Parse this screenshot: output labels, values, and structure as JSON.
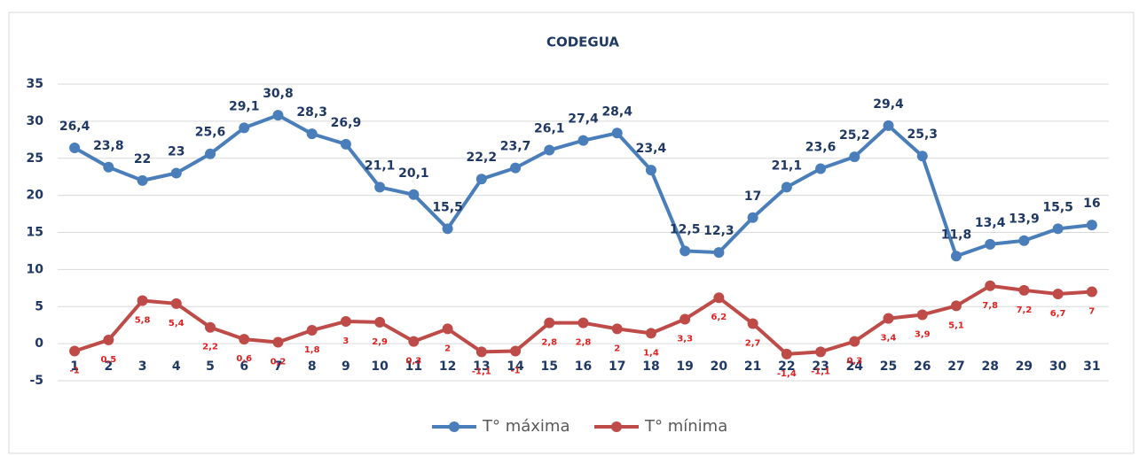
{
  "chart_data": {
    "type": "line",
    "title": "CODEGUA",
    "categories": [
      "1",
      "2",
      "3",
      "4",
      "5",
      "6",
      "7",
      "8",
      "9",
      "10",
      "11",
      "12",
      "13",
      "14",
      "15",
      "16",
      "17",
      "18",
      "19",
      "20",
      "21",
      "22",
      "23",
      "24",
      "25",
      "26",
      "27",
      "28",
      "29",
      "30",
      "31"
    ],
    "series": [
      {
        "name": "T° máxima",
        "color": "#4a7ebb",
        "values": [
          26.4,
          23.8,
          22,
          23,
          25.6,
          29.1,
          30.8,
          28.3,
          26.9,
          21.1,
          20.1,
          15.5,
          22.2,
          23.7,
          26.1,
          27.4,
          28.4,
          23.4,
          12.5,
          12.3,
          17,
          21.1,
          23.6,
          25.2,
          29.4,
          25.3,
          11.8,
          13.4,
          13.9,
          15.5,
          16
        ],
        "value_labels": [
          "26,4",
          "23,8",
          "22",
          "23",
          "25,6",
          "29,1",
          "30,8",
          "28,3",
          "26,9",
          "21,1",
          "20,1",
          "15,5",
          "22,2",
          "23,7",
          "26,1",
          "27,4",
          "28,4",
          "23,4",
          "12,5",
          "12,3",
          "17",
          "21,1",
          "23,6",
          "25,2",
          "29,4",
          "25,3",
          "11,8",
          "13,4",
          "13,9",
          "15,5",
          "16"
        ]
      },
      {
        "name": "T° mínima",
        "color": "#be4b48",
        "values": [
          -1,
          0.5,
          5.8,
          5.4,
          2.2,
          0.6,
          0.2,
          1.8,
          3,
          2.9,
          0.3,
          2,
          -1.1,
          -1,
          2.8,
          2.8,
          2,
          1.4,
          3.3,
          6.2,
          2.7,
          -1.4,
          -1.1,
          0.3,
          3.4,
          3.9,
          5.1,
          7.8,
          7.2,
          6.7,
          7
        ],
        "value_labels": [
          "-1",
          "0,5",
          "5,8",
          "5,4",
          "2,2",
          "0,6",
          "0,2",
          "1,8",
          "3",
          "2,9",
          "0,3",
          "2",
          "-1,1",
          "-1",
          "2,8",
          "2,8",
          "2",
          "1,4",
          "3,3",
          "6,2",
          "2,7",
          "-1,4",
          "-1,1",
          "0,3",
          "3,4",
          "3,9",
          "5,1",
          "7,8",
          "7,2",
          "6,7",
          "7"
        ]
      }
    ],
    "ylim": [
      -5,
      35
    ],
    "yticks": [
      -5,
      0,
      5,
      10,
      15,
      20,
      25,
      30,
      35
    ],
    "grid": true,
    "legend": "bottom"
  }
}
